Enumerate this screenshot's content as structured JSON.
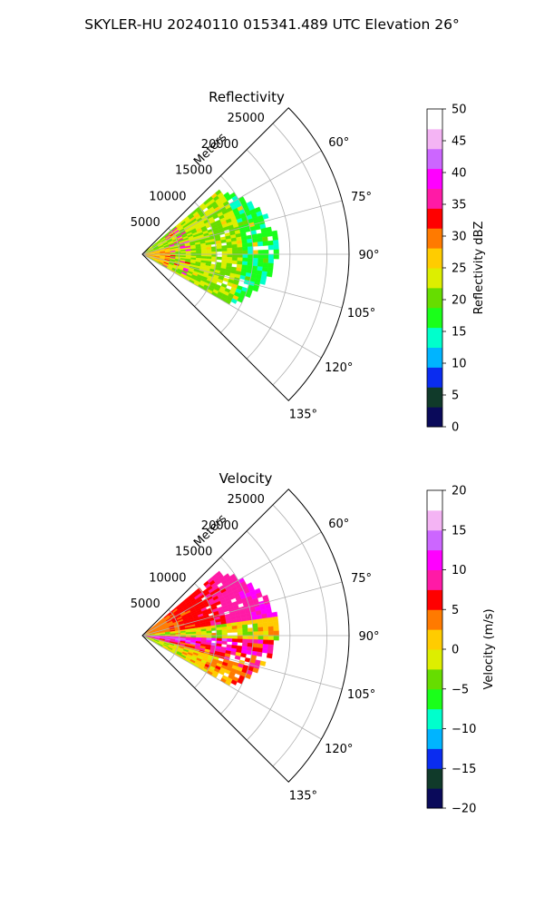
{
  "figure": {
    "title": "SKYLER-HU  20240110  015341.489 UTC Elevation 26°"
  },
  "chart_data": [
    {
      "type": "heatmap",
      "projection": "polar-sector",
      "title": "Reflectivity",
      "range_label": "Meters",
      "range_ticks": [
        5000,
        10000,
        15000,
        20000,
        25000
      ],
      "range_tick_labels": [
        "5000",
        "10000",
        "15000",
        "20000",
        "25000"
      ],
      "rmax": 28000,
      "azimuth_min": 45,
      "azimuth_max": 135,
      "azimuth_ticks": [
        60,
        75,
        90,
        105,
        120,
        135
      ],
      "azimuth_tick_labels": [
        "60°",
        "75°",
        "90°",
        "105°",
        "120°",
        "135°"
      ],
      "grid": true,
      "data_extent": {
        "azimuth": [
          50,
          120
        ],
        "range_max": 18000
      },
      "colorbar": {
        "label": "Reflectivity dBZ",
        "min": 0,
        "max": 50,
        "ticks": [
          0,
          5,
          10,
          15,
          20,
          25,
          30,
          35,
          40,
          45,
          50
        ],
        "tick_labels": [
          "0",
          "5",
          "10",
          "15",
          "20",
          "25",
          "30",
          "35",
          "40",
          "45",
          "50"
        ],
        "colors": [
          "#0a0a5a",
          "#103a2a",
          "#0a2cf0",
          "#00b4ff",
          "#00ffcc",
          "#1aff1a",
          "#66dd00",
          "#ddee00",
          "#ffcc00",
          "#ff7a00",
          "#ff0000",
          "#ff1aa6",
          "#ff00ff",
          "#cc66ff",
          "#f4b4f4",
          "#ffffff"
        ]
      }
    },
    {
      "type": "heatmap",
      "projection": "polar-sector",
      "title": "Velocity",
      "range_label": "Meters",
      "range_ticks": [
        5000,
        10000,
        15000,
        20000,
        25000
      ],
      "range_tick_labels": [
        "5000",
        "10000",
        "15000",
        "20000",
        "25000"
      ],
      "rmax": 28000,
      "azimuth_min": 45,
      "azimuth_max": 135,
      "azimuth_ticks": [
        60,
        75,
        90,
        105,
        120,
        135
      ],
      "azimuth_tick_labels": [
        "60°",
        "75°",
        "90°",
        "105°",
        "120°",
        "135°"
      ],
      "grid": true,
      "data_extent": {
        "azimuth": [
          50,
          120
        ],
        "range_max": 18000
      },
      "colorbar": {
        "label": "Velocity (m/s)",
        "min": -20,
        "max": 20,
        "ticks": [
          -20,
          -15,
          -10,
          -5,
          0,
          5,
          10,
          15,
          20
        ],
        "tick_labels": [
          "−20",
          "−15",
          "−10",
          "−5",
          "0",
          "5",
          "10",
          "15",
          "20"
        ],
        "colors": [
          "#0a0a5a",
          "#103a2a",
          "#0a2cf0",
          "#00b4ff",
          "#00ffcc",
          "#1aff1a",
          "#66dd00",
          "#ddee00",
          "#ffcc00",
          "#ff7a00",
          "#ff0000",
          "#ff1aa6",
          "#ff00ff",
          "#cc66ff",
          "#f4b4f4",
          "#ffffff"
        ]
      }
    }
  ]
}
